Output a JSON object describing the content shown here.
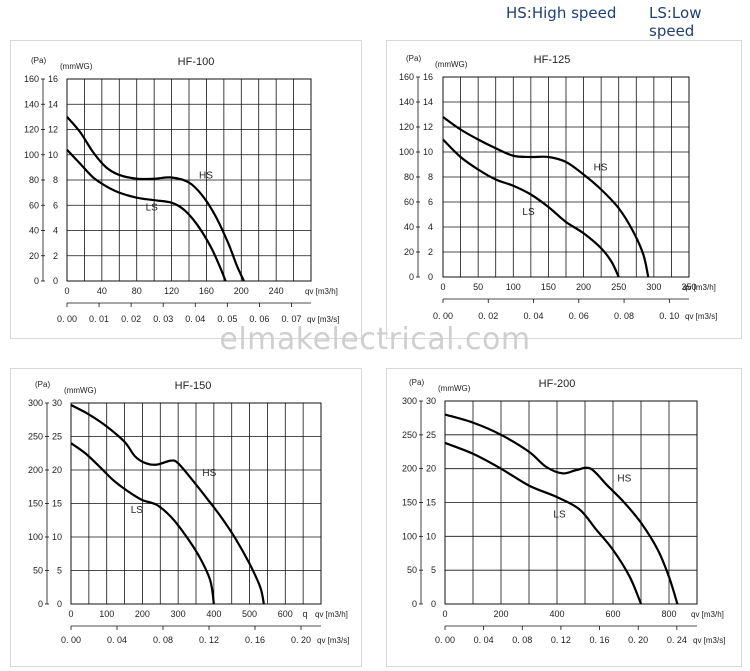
{
  "legend": {
    "hs": "HS:High speed",
    "ls": "LS:Low speed"
  },
  "watermark": "elmakelectrical.com",
  "chart_data": [
    {
      "type": "line",
      "title": "HF-100",
      "pa_label": "(Pa)",
      "mmwg_label": "(mmWG)",
      "pa_ticks": [
        "0",
        "20",
        "40",
        "60",
        "80",
        "100",
        "120",
        "140",
        "160"
      ],
      "mmwg_ticks": [
        "0",
        "2",
        "4",
        "6",
        "8",
        "10",
        "12",
        "14",
        "16"
      ],
      "ylim": [
        0,
        160
      ],
      "xlim": [
        0,
        280
      ],
      "x_ticks": [
        0,
        40,
        80,
        120,
        160,
        200,
        240
      ],
      "x_tick_labels": [
        "0",
        "40",
        "80",
        "120",
        "160",
        "200",
        "240"
      ],
      "x_unit": "qv [m3/h]",
      "x2_tick_labels": [
        "0. 00",
        "0. 01",
        "0. 02",
        "0. 03",
        "0. 04",
        "0. 05",
        "0. 06",
        "0. 07"
      ],
      "x2_unit": "qv [m3/s]",
      "series": [
        {
          "name": "HS",
          "x": [
            0,
            15,
            30,
            45,
            60,
            80,
            100,
            120,
            140,
            155,
            170,
            185,
            195,
            203
          ],
          "y": [
            130,
            118,
            102,
            90,
            84,
            81,
            81,
            82,
            78,
            68,
            52,
            30,
            12,
            0
          ]
        },
        {
          "name": "LS",
          "x": [
            0,
            15,
            30,
            45,
            60,
            80,
            100,
            120,
            135,
            150,
            165,
            175,
            182
          ],
          "y": [
            104,
            93,
            82,
            75,
            70,
            66,
            64,
            62,
            56,
            44,
            27,
            12,
            0
          ]
        }
      ]
    },
    {
      "type": "line",
      "title": "HF-125",
      "pa_label": "(Pa)",
      "mmwg_label": "(mmWG)",
      "pa_ticks": [
        "0",
        "20",
        "40",
        "60",
        "80",
        "100",
        "120",
        "140",
        "160"
      ],
      "mmwg_ticks": [
        "0",
        "2",
        "4",
        "6",
        "8",
        "10",
        "12",
        "14",
        "16"
      ],
      "ylim": [
        0,
        160
      ],
      "xlim": [
        0,
        350
      ],
      "x_ticks": [
        0,
        50,
        100,
        150,
        200,
        250,
        300,
        350
      ],
      "x_tick_labels": [
        "0",
        "50",
        "100",
        "150",
        "200",
        "250",
        "300",
        "350"
      ],
      "x_unit": "qv [m3/h]",
      "x2_tick_labels": [
        "0. 00",
        "0. 02",
        "0. 04",
        "0. 06",
        "0. 08",
        "0. 10"
      ],
      "x2_unit": "qv [m3/s]",
      "series": [
        {
          "name": "HS",
          "x": [
            0,
            25,
            50,
            75,
            100,
            125,
            150,
            175,
            200,
            225,
            250,
            270,
            285,
            292
          ],
          "y": [
            128,
            118,
            110,
            103,
            97,
            96,
            96,
            92,
            82,
            70,
            55,
            37,
            18,
            0
          ]
        },
        {
          "name": "LS",
          "x": [
            0,
            25,
            50,
            75,
            100,
            125,
            150,
            175,
            200,
            225,
            240,
            250
          ],
          "y": [
            110,
            96,
            86,
            78,
            73,
            66,
            56,
            44,
            35,
            23,
            12,
            0
          ]
        }
      ]
    },
    {
      "type": "line",
      "title": "HF-150",
      "pa_label": "(Pa)",
      "mmwg_label": "(mmWG)",
      "pa_ticks": [
        "0",
        "50",
        "100",
        "150",
        "200",
        "250",
        "300"
      ],
      "mmwg_ticks": [
        "0",
        "5",
        "10",
        "15",
        "20",
        "25",
        "30"
      ],
      "ylim": [
        0,
        300
      ],
      "xlim": [
        0,
        700
      ],
      "x_ticks": [
        0,
        100,
        200,
        300,
        400,
        500,
        600
      ],
      "x_tick_labels": [
        "0",
        "100",
        "200",
        "300",
        "400",
        "500",
        "600"
      ],
      "x_unit": "qv [m3/h]",
      "x_extra_label": "q",
      "x2_tick_labels": [
        "0. 00",
        "0. 04",
        "0. 08",
        "0. 12",
        "0. 16",
        "0. 20"
      ],
      "x2_unit": "qv [m3/s]",
      "series": [
        {
          "name": "HS",
          "x": [
            0,
            50,
            100,
            150,
            180,
            210,
            240,
            280,
            300,
            340,
            380,
            420,
            460,
            500,
            530,
            540
          ],
          "y": [
            297,
            283,
            265,
            242,
            220,
            210,
            208,
            214,
            210,
            185,
            158,
            130,
            98,
            60,
            25,
            0
          ]
        },
        {
          "name": "LS",
          "x": [
            0,
            40,
            80,
            120,
            160,
            200,
            240,
            280,
            320,
            360,
            390,
            400
          ],
          "y": [
            240,
            225,
            205,
            184,
            168,
            155,
            148,
            130,
            103,
            70,
            35,
            0
          ]
        }
      ]
    },
    {
      "type": "line",
      "title": "HF-200",
      "pa_label": "(Pa)",
      "mmwg_label": "(mmWG)",
      "pa_ticks": [
        "0",
        "50",
        "100",
        "150",
        "200",
        "250",
        "300"
      ],
      "mmwg_ticks": [
        "0",
        "5",
        "10",
        "15",
        "20",
        "25",
        "30"
      ],
      "ylim": [
        0,
        300
      ],
      "xlim": [
        0,
        900
      ],
      "x_ticks": [
        0,
        200,
        400,
        600,
        800
      ],
      "x_tick_labels": [
        "0",
        "200",
        "400",
        "600",
        "800"
      ],
      "x_unit": "qv [m3/h]",
      "x2_tick_labels": [
        "0. 00",
        "0. 04",
        "0. 08",
        "0. 12",
        "0. 16",
        "0. 20",
        "0. 24"
      ],
      "x2_unit": "qv [m3/s]",
      "series": [
        {
          "name": "HS",
          "x": [
            0,
            100,
            200,
            300,
            360,
            420,
            470,
            520,
            580,
            640,
            700,
            760,
            800,
            830
          ],
          "y": [
            280,
            268,
            250,
            225,
            203,
            193,
            198,
            200,
            175,
            150,
            120,
            80,
            40,
            0
          ]
        },
        {
          "name": "LS",
          "x": [
            0,
            100,
            200,
            300,
            400,
            480,
            540,
            600,
            660,
            700
          ],
          "y": [
            238,
            222,
            200,
            175,
            158,
            140,
            110,
            80,
            40,
            0
          ]
        }
      ]
    }
  ]
}
